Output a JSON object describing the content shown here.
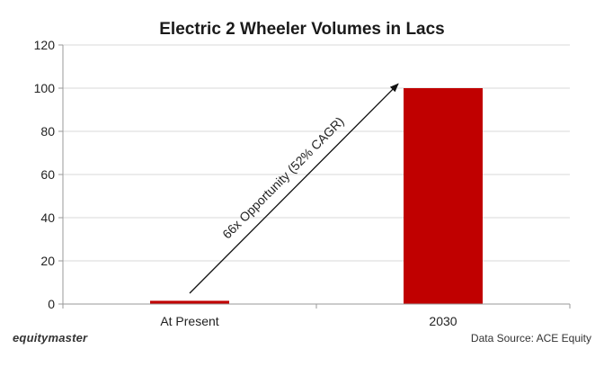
{
  "chart_data": {
    "type": "bar",
    "title": "Electric 2 Wheeler Volumes in Lacs",
    "categories": [
      "At Present",
      "2030"
    ],
    "values": [
      1.5,
      100
    ],
    "ylim": [
      0,
      120
    ],
    "yticks": [
      0,
      20,
      40,
      60,
      80,
      100,
      120
    ],
    "xlabel": "",
    "ylabel": "",
    "grid": true,
    "legend": "none",
    "bar_color": "#c00000",
    "annotation": {
      "text": "66x Opportunity (52% CAGR)",
      "from": {
        "category": "At Present",
        "value": 5
      },
      "to": {
        "category": "2030",
        "value": 102
      }
    }
  },
  "footer": {
    "brand": "equitymaster",
    "source": "Data Source: ACE Equity"
  }
}
